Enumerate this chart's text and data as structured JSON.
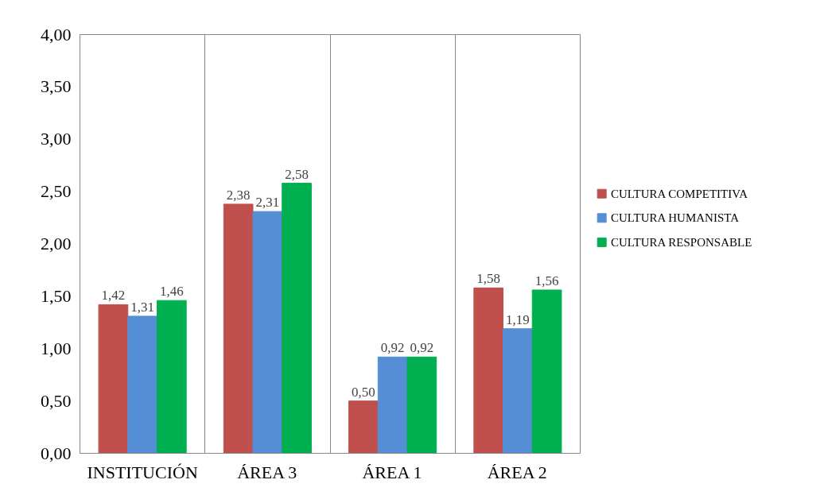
{
  "chart_data": {
    "type": "bar",
    "categories": [
      "INSTITUCIÓN",
      "ÁREA 3",
      "ÁREA 1",
      "ÁREA 2"
    ],
    "series": [
      {
        "name": "CULTURA COMPETITIVA",
        "color": "#c0504d",
        "values": [
          1.42,
          2.38,
          0.5,
          1.58
        ],
        "value_labels": [
          "1,42",
          "2,38",
          "0,50",
          "1,58"
        ]
      },
      {
        "name": "CULTURA HUMANISTA",
        "color": "#558ed5",
        "values": [
          1.31,
          2.31,
          0.92,
          1.19
        ],
        "value_labels": [
          "1,31",
          "2,31",
          "0,92",
          "1,19"
        ]
      },
      {
        "name": "CULTURA RESPONSABLE",
        "color": "#00b050",
        "values": [
          1.46,
          2.58,
          0.92,
          1.56
        ],
        "value_labels": [
          "1,46",
          "2,58",
          "0,92",
          "1,56"
        ]
      }
    ],
    "ylim": [
      0,
      4
    ],
    "yticks": [
      {
        "value": 0,
        "label": "0,00"
      },
      {
        "value": 0.5,
        "label": "0,50"
      },
      {
        "value": 1,
        "label": "1,00"
      },
      {
        "value": 1.5,
        "label": "1,50"
      },
      {
        "value": 2,
        "label": "2,00"
      },
      {
        "value": 2.5,
        "label": "2,50"
      },
      {
        "value": 3,
        "label": "3,00"
      },
      {
        "value": 3.5,
        "label": "3,50"
      },
      {
        "value": 4,
        "label": "4,00"
      }
    ],
    "grid": "x",
    "legend": "right"
  }
}
